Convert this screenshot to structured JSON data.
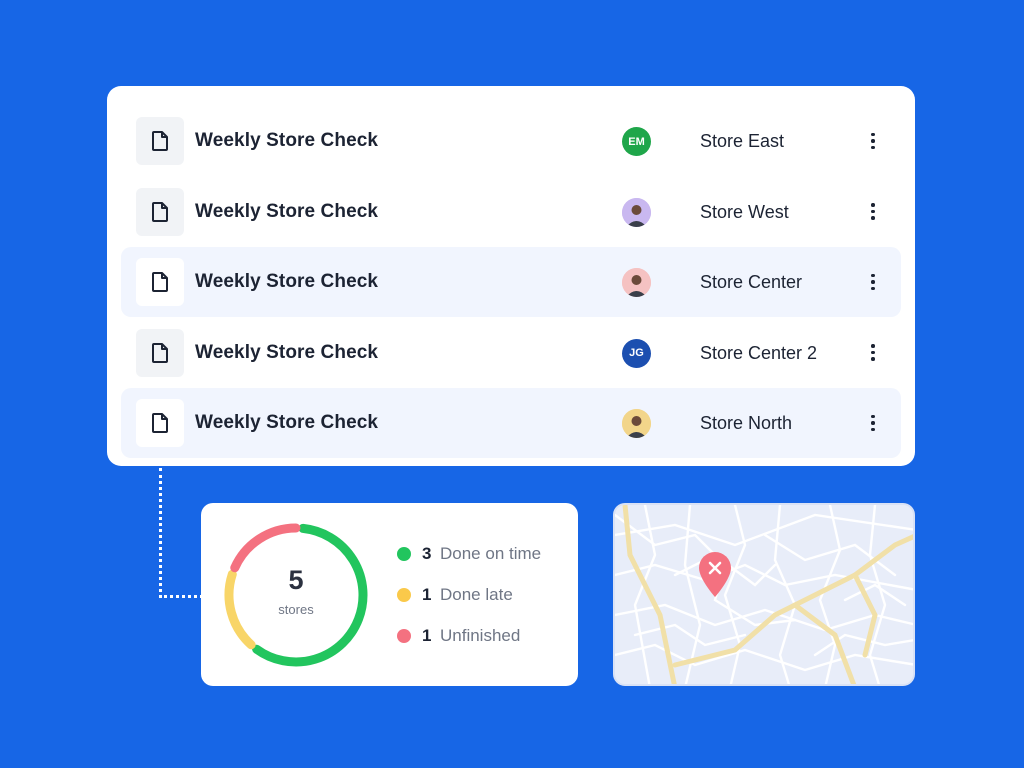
{
  "checklist": {
    "rows": [
      {
        "title": "Weekly Store Check",
        "assignee": {
          "initials": "EM",
          "color": "#1FA64A",
          "type": "initials"
        },
        "store": "Store East",
        "highlighted": false
      },
      {
        "title": "Weekly Store Check",
        "assignee": {
          "initials": "",
          "color": "#C9B8F0",
          "type": "photo"
        },
        "store": "Store West",
        "highlighted": false
      },
      {
        "title": "Weekly Store Check",
        "assignee": {
          "initials": "",
          "color": "#F5C2C2",
          "type": "photo"
        },
        "store": "Store Center",
        "highlighted": true
      },
      {
        "title": "Weekly Store Check",
        "assignee": {
          "initials": "JG",
          "color": "#1C4FB0",
          "type": "initials"
        },
        "store": "Store Center 2",
        "highlighted": false
      },
      {
        "title": "Weekly Store Check",
        "assignee": {
          "initials": "",
          "color": "#F2D58A",
          "type": "photo"
        },
        "store": "Store North",
        "highlighted": true
      }
    ]
  },
  "stats": {
    "total": "5",
    "unit": "stores",
    "legend": [
      {
        "count": "3",
        "label": "Done on time",
        "color": "#22C55E"
      },
      {
        "count": "1",
        "label": "Done late",
        "color": "#FAC94A"
      },
      {
        "count": "1",
        "label": "Unfinished",
        "color": "#F47180"
      }
    ]
  },
  "chart_data": {
    "type": "pie",
    "categories": [
      "Done on time",
      "Done late",
      "Unfinished"
    ],
    "values": [
      3,
      1,
      1
    ],
    "colors": [
      "#22C55E",
      "#F8D568",
      "#F47180"
    ],
    "title": "",
    "donut": true
  },
  "icons": {
    "row": "document-icon",
    "menu": "more-vertical-icon",
    "map_pin": "map-pin-close-icon"
  },
  "theme": {
    "background": "#1766E6",
    "text": "#1C2333",
    "highlight_row": "#F1F5FE"
  }
}
